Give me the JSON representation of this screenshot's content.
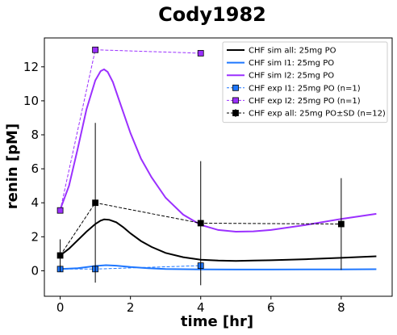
{
  "chart_data": {
    "type": "line",
    "title": "Cody1982",
    "xlabel": "time [hr]",
    "ylabel": "renin [pM]",
    "xlim": [
      -0.45,
      9.45
    ],
    "ylim": [
      -1.5,
      13.7
    ],
    "xticks": [
      0,
      2,
      4,
      6,
      8
    ],
    "yticks": [
      0,
      2,
      4,
      6,
      8,
      10,
      12
    ],
    "grid": false,
    "legend_position": "top-right",
    "series": [
      {
        "name": "CHF sim all: 25mg PO",
        "style": "solid",
        "color": "#000000",
        "x": [
          0,
          0.25,
          0.5,
          0.75,
          1.0,
          1.15,
          1.25,
          1.4,
          1.6,
          1.8,
          2.0,
          2.3,
          2.6,
          3.0,
          3.5,
          4.0,
          4.5,
          5.0,
          5.5,
          6.0,
          7.0,
          8.0,
          9.0
        ],
        "y": [
          0.9,
          1.3,
          1.8,
          2.3,
          2.75,
          2.95,
          3.02,
          3.0,
          2.85,
          2.55,
          2.2,
          1.75,
          1.4,
          1.05,
          0.8,
          0.65,
          0.6,
          0.58,
          0.6,
          0.62,
          0.68,
          0.76,
          0.85
        ]
      },
      {
        "name": "CHF sim I1: 25mg PO",
        "style": "solid",
        "color": "#1f77ff",
        "x": [
          0,
          0.5,
          1.0,
          1.3,
          1.6,
          2.0,
          2.5,
          3.0,
          4.0,
          5.0,
          6.0,
          7.0,
          8.0,
          9.0
        ],
        "y": [
          0.1,
          0.15,
          0.28,
          0.33,
          0.3,
          0.22,
          0.15,
          0.1,
          0.08,
          0.07,
          0.07,
          0.08,
          0.08,
          0.09
        ]
      },
      {
        "name": "CHF sim I2: 25mg PO",
        "style": "solid",
        "color": "#9b30ff",
        "x": [
          0,
          0.25,
          0.5,
          0.75,
          1.0,
          1.15,
          1.25,
          1.35,
          1.5,
          1.7,
          2.0,
          2.3,
          2.6,
          3.0,
          3.5,
          4.0,
          4.5,
          5.0,
          5.5,
          6.0,
          7.0,
          8.0,
          9.0
        ],
        "y": [
          3.6,
          5.0,
          7.2,
          9.5,
          11.2,
          11.75,
          11.85,
          11.7,
          11.1,
          9.9,
          8.1,
          6.6,
          5.5,
          4.3,
          3.3,
          2.7,
          2.4,
          2.3,
          2.32,
          2.4,
          2.7,
          3.05,
          3.35
        ]
      },
      {
        "name": "CHF exp I1: 25mg PO (n=1)",
        "style": "dashed-marker",
        "color": "#1f77ff",
        "x": [
          0,
          1,
          4
        ],
        "y": [
          0.1,
          0.1,
          0.3
        ]
      },
      {
        "name": "CHF exp I2: 25mg PO (n=1)",
        "style": "dashed-marker",
        "color": "#9b30ff",
        "x": [
          0,
          1,
          4
        ],
        "y": [
          3.55,
          13.0,
          12.8
        ]
      },
      {
        "name": "CHF exp all: 25mg PO±SD (n=12)",
        "style": "dashed-marker-errorbar",
        "color": "#000000",
        "x": [
          0,
          1,
          4,
          8
        ],
        "y": [
          0.9,
          4.0,
          2.8,
          2.75
        ],
        "yerr": [
          0.95,
          4.7,
          3.65,
          2.7
        ]
      }
    ]
  }
}
